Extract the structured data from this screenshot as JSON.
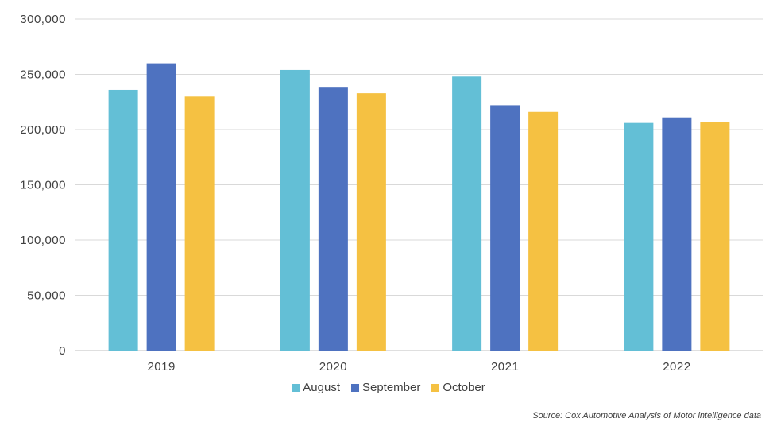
{
  "chart_data": {
    "type": "bar",
    "categories": [
      "2019",
      "2020",
      "2021",
      "2022"
    ],
    "series": [
      {
        "name": "August",
        "color": "#63BFD6",
        "values": [
          236000,
          254000,
          248000,
          206000
        ]
      },
      {
        "name": "September",
        "color": "#4E72C0",
        "values": [
          260000,
          238000,
          222000,
          211000
        ]
      },
      {
        "name": "October",
        "color": "#F5C142",
        "values": [
          230000,
          233000,
          216000,
          207000
        ]
      }
    ],
    "ylim": [
      0,
      300000
    ],
    "yticks": [
      0,
      50000,
      100000,
      150000,
      200000,
      250000,
      300000
    ],
    "ytick_labels": [
      "0",
      "50,000",
      "100,000",
      "150,000",
      "200,000",
      "250,000",
      "300,000"
    ],
    "grid": true,
    "legend_position": "bottom",
    "title": "",
    "xlabel": "",
    "ylabel": ""
  },
  "source_note": "Source: Cox Automotive Analysis of Motor intelligence data"
}
